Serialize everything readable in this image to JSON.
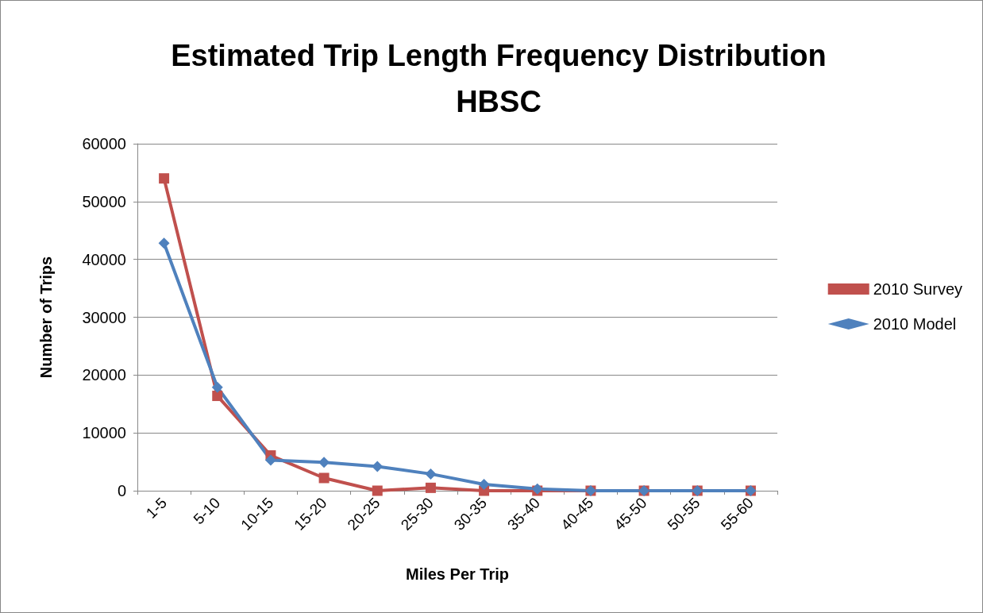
{
  "chart_data": {
    "type": "line",
    "title": "Estimated Trip Length Frequency Distribution\nHBSC",
    "xlabel": "Miles Per Trip",
    "ylabel": "Number of Trips",
    "categories": [
      "1-5",
      "5-10",
      "10-15",
      "15-20",
      "20-25",
      "25-30",
      "30-35",
      "35-40",
      "40-45",
      "45-50",
      "50-55",
      "55-60"
    ],
    "series": [
      {
        "name": "2010 Survey",
        "color": "#c0504d",
        "marker": "square",
        "values": [
          54000,
          16400,
          6100,
          2200,
          0,
          500,
          0,
          0,
          0,
          0,
          0,
          0
        ]
      },
      {
        "name": "2010 Model",
        "color": "#4f81bd",
        "marker": "diamond",
        "values": [
          42800,
          17900,
          5300,
          4900,
          4200,
          2900,
          1100,
          300,
          0,
          0,
          0,
          0
        ]
      }
    ],
    "ylim": [
      0,
      60000
    ],
    "yticks": [
      0,
      10000,
      20000,
      30000,
      40000,
      50000,
      60000
    ],
    "grid": "y",
    "legend": "right",
    "line_style": "solid"
  }
}
